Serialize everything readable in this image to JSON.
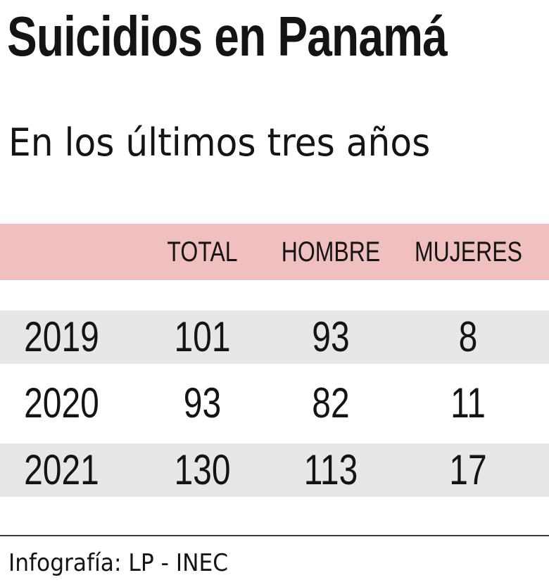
{
  "title": "Suicidios en Panamá",
  "subtitle": "En los últimos tres años",
  "source": "Infografía: LP - INEC",
  "colors": {
    "header_band": "#f0c0c0",
    "row_shade": "#e7e7e7",
    "text": "#141414"
  },
  "chart_data": {
    "type": "table",
    "title": "Suicidios en Panamá",
    "subtitle": "En los últimos tres años",
    "columns": [
      "",
      "TOTAL",
      "HOMBRE",
      "MUJERES"
    ],
    "rows": [
      {
        "year": "2019",
        "total": 101,
        "hombre": 93,
        "mujeres": 8
      },
      {
        "year": "2020",
        "total": 93,
        "hombre": 82,
        "mujeres": 11
      },
      {
        "year": "2021",
        "total": 130,
        "hombre": 113,
        "mujeres": 17
      }
    ]
  }
}
